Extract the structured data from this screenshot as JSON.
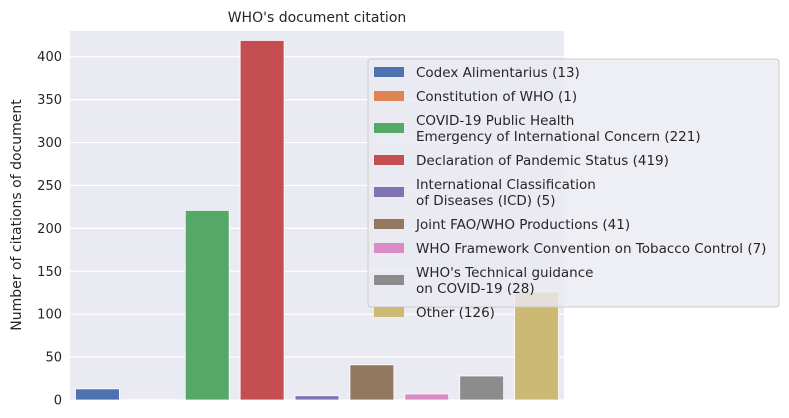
{
  "chart_data": {
    "type": "bar",
    "title": "WHO's document citation",
    "xlabel": "",
    "ylabel": "Number of citations of document",
    "ylim": [
      0,
      430
    ],
    "yticks": [
      0,
      50,
      100,
      150,
      200,
      250,
      300,
      350,
      400
    ],
    "grid": true,
    "legend_position": "right",
    "categories": [
      "Codex Alimentarius",
      "Constitution of WHO",
      "COVID-19 Public Health Emergency of International Concern",
      "Declaration of Pandemic Status",
      "International Classification of Diseases (ICD)",
      "Joint FAO/WHO Productions",
      "WHO Framework Convention on Tobacco Control",
      "WHO's Technical guidance on COVID-19",
      "Other"
    ],
    "values": [
      13,
      1,
      221,
      419,
      5,
      41,
      7,
      28,
      126
    ],
    "colors": [
      "#4c72b0",
      "#dd8452",
      "#55a868",
      "#c44e52",
      "#8172b3",
      "#937860",
      "#da8bc3",
      "#8c8c8c",
      "#ccb974"
    ],
    "legend": [
      [
        "Codex Alimentarius (13)"
      ],
      [
        "Constitution of WHO (1)"
      ],
      [
        "COVID-19 Public Health",
        "Emergency of International Concern (221)"
      ],
      [
        "Declaration of Pandemic Status (419)"
      ],
      [
        "International Classification",
        "of Diseases (ICD) (5)"
      ],
      [
        "Joint FAO/WHO Productions (41)"
      ],
      [
        "WHO Framework Convention on Tobacco Control (7)"
      ],
      [
        "WHO's Technical guidance",
        "on COVID-19 (28)"
      ],
      [
        "Other (126)"
      ]
    ]
  }
}
